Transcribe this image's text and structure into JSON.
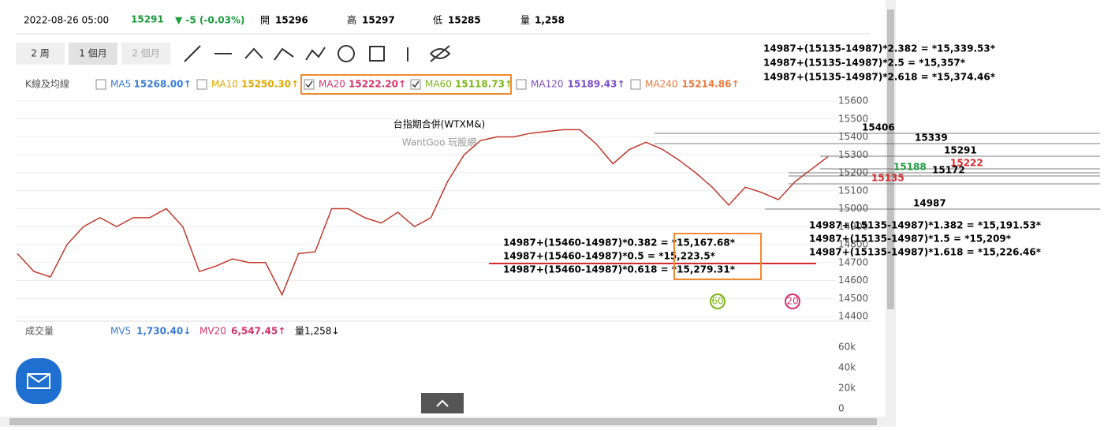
{
  "header": {
    "datetime": "2022-08-26 05:00",
    "price": "15291",
    "change": "▼ -5 (-0.03%)",
    "open_label": "開",
    "open": "15296",
    "high_label": "高",
    "high": "15297",
    "low_label": "低",
    "low": "15285",
    "vol_label": "量",
    "vol": "1,258"
  },
  "periods": [
    "2 周",
    "1 個月",
    "2 個月"
  ],
  "ma_row": {
    "label": "K線及均線",
    "items": [
      {
        "name": "MA5",
        "value": "15268.00↑",
        "color": "#3a7bd5"
      },
      {
        "name": "MA10",
        "value": "15250.30↑",
        "color": "#e0a800"
      },
      {
        "name": "MA20",
        "value": "15222.20↑",
        "color": "#d6336c"
      },
      {
        "name": "MA60",
        "value": "15118.73↑",
        "color": "#7cb518"
      },
      {
        "name": "MA120",
        "value": "15189.43↑",
        "color": "#7b4fc9"
      },
      {
        "name": "MA240",
        "value": "15214.86↑",
        "color": "#f07a3c"
      }
    ]
  },
  "chart": {
    "title": "台指期合併(WTXM&)",
    "watermark": "WantGoo 玩股網",
    "ylim": [
      14400,
      15600
    ],
    "yticks": [
      15600,
      15500,
      15400,
      15300,
      15200,
      15100,
      15000,
      14900,
      14800,
      14700,
      14600,
      14500,
      14400
    ],
    "close": [
      14750,
      14650,
      14620,
      14800,
      14900,
      14950,
      14900,
      14950,
      14950,
      15000,
      14900,
      14650,
      14680,
      14720,
      14700,
      14700,
      14520,
      14750,
      14760,
      15000,
      15000,
      14950,
      14920,
      14980,
      14900,
      14950,
      15150,
      15300,
      15380,
      15400,
      15400,
      15420,
      15430,
      15440,
      15440,
      15360,
      15250,
      15330,
      15370,
      15330,
      15270,
      15200,
      15120,
      15020,
      15120,
      15090,
      15050,
      15150,
      15220,
      15290
    ],
    "badges": [
      "60",
      "20"
    ]
  },
  "annotations": {
    "ext": [
      "14987+(15135-14987)*2.382 = *15,339.53*",
      "14987+(15135-14987)*2.5 = *15,357*",
      "14987+(15135-14987)*2.618 = *15,374.46*"
    ],
    "levels": [
      "15406",
      "15339",
      "15291",
      "15222",
      "15188",
      "15172",
      "15135",
      "14987"
    ],
    "ret": [
      "14987+(15135-14987)*1.382 = *15,191.53*",
      "14987+(15135-14987)*1.5 = *15,209*",
      "14987+(15135-14987)*1.618 = *15,226.46*"
    ],
    "fib": [
      "14987+(15460-14987)*0.382 = *15,167.68*",
      "14987+(15460-14987)*0.5 = *15,223.5*",
      "14987+(15460-14987)*0.618 = *15,279.31*"
    ]
  },
  "volume": {
    "label": "成交量",
    "mv5_name": "MV5",
    "mv5": "1,730.40↓",
    "mv20_name": "MV20",
    "mv20": "6,547.45↑",
    "vol": "量1,258↓",
    "ticks": [
      "60k",
      "40k",
      "20k",
      "0"
    ]
  }
}
